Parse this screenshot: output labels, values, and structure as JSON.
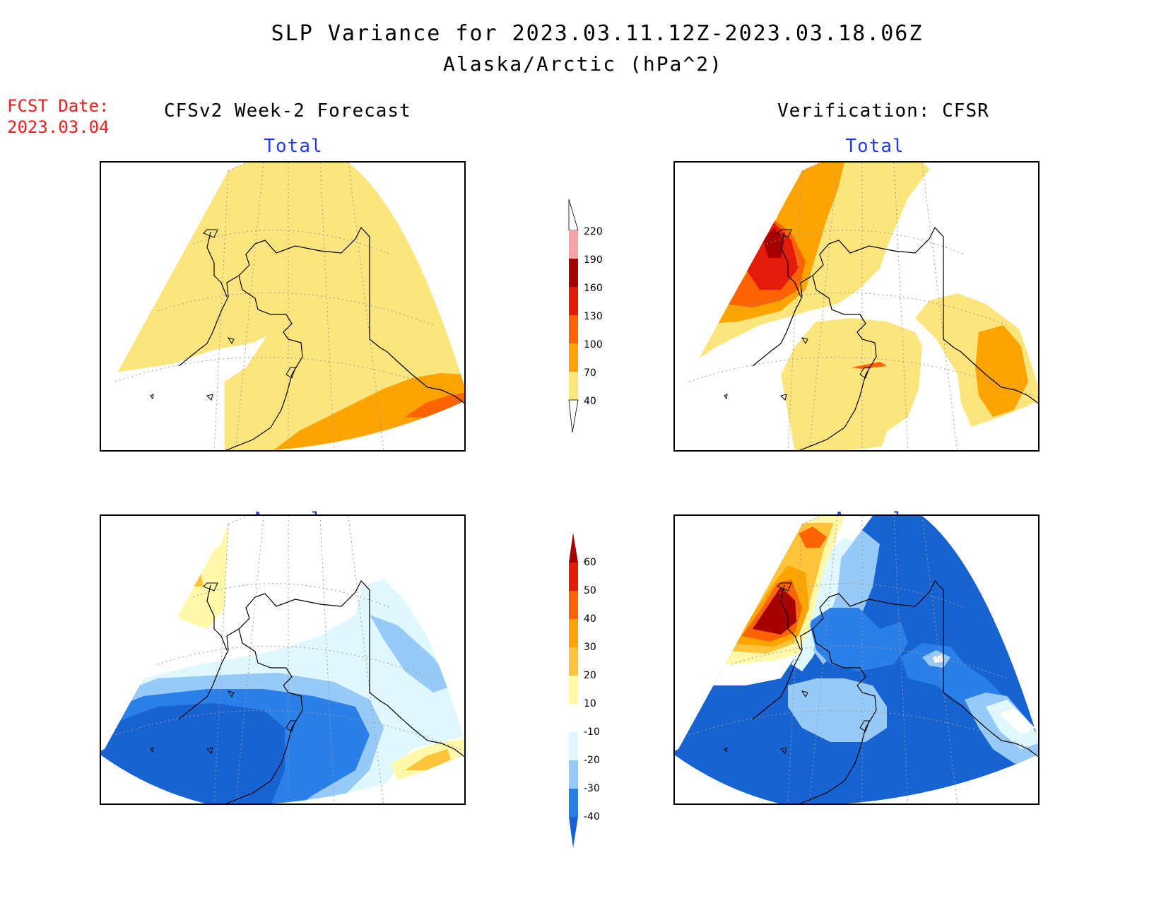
{
  "header": {
    "title_line1": "SLP Variance for 2023.03.11.12Z-2023.03.18.06Z",
    "title_line2": "Alaska/Arctic (hPa^2)",
    "fcst_label": "FCST Date:",
    "fcst_date": "2023.03.04",
    "left_column": "CFSv2 Week-2 Forecast",
    "right_column": "Verification: CFSR"
  },
  "panels": {
    "top_left_title": "Total",
    "top_right_title": "Total",
    "bottom_left_title": "Anomaly",
    "bottom_right_title": "Anomaly"
  },
  "colorbar_total": {
    "levels": [
      "40",
      "70",
      "100",
      "130",
      "160",
      "190",
      "220"
    ],
    "colors": [
      "#fde57e",
      "#fda400",
      "#fd6300",
      "#e41b0a",
      "#a60000",
      "#f4a4a4",
      "#fbe4e4"
    ]
  },
  "colorbar_anomaly": {
    "levels": [
      "-40",
      "-30",
      "-20",
      "-10",
      "10",
      "20",
      "30",
      "40",
      "50",
      "60"
    ],
    "colors": [
      "#1863d2",
      "#2b7fe8",
      "#98caf7",
      "#dff8ff",
      "#ffffff",
      "#fff8a8",
      "#ffc43c",
      "#fda400",
      "#fd6300",
      "#e41b0a",
      "#a60000"
    ]
  },
  "map_colors": {
    "total_40_70": "#fde57e",
    "total_70_100": "#fda400",
    "total_100_130": "#fd6300",
    "total_130_160": "#e41b0a",
    "total_160_190": "#a60000",
    "anom_lt_-40": "#1863d2",
    "anom_-40_-30": "#2b7fe8",
    "anom_-30_-20": "#98caf7",
    "anom_-20_-10": "#dff8ff",
    "anom_10_20": "#fff8a8",
    "anom_20_30": "#ffc43c",
    "anom_30_40": "#fda400",
    "anom_40_50": "#fd6300",
    "anom_gt_50": "#a60000"
  }
}
